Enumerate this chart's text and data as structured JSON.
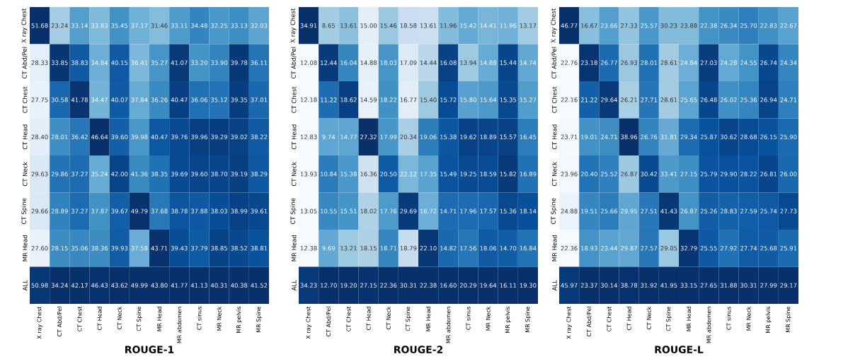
{
  "chart_data": [
    {
      "type": "heatmap",
      "title": "ROUGE-1",
      "categories": [
        "X ray Chest",
        "CT Abd/Pel",
        "CT Chest",
        "CT Head",
        "CT Neck",
        "CT Spine",
        "MR Head",
        "MR abdomen",
        "CT sinus",
        "MR Neck",
        "MR pelvis",
        "MR Spine"
      ],
      "y_categories": [
        "X ray Chest",
        "CT Abd/Pel",
        "CT Chest",
        "CT Head",
        "CT Neck",
        "CT Spine",
        "MR Head",
        "ALL"
      ],
      "cells": [
        [
          51.68,
          23.24,
          33.14,
          33.83,
          35.45,
          37.17,
          31.46,
          33.11,
          34.48,
          32.25,
          33.13,
          32.03
        ],
        [
          28.33,
          33.85,
          38.83,
          34.84,
          40.15,
          36.41,
          35.27,
          41.07,
          33.2,
          33.9,
          39.78,
          36.11
        ],
        [
          27.75,
          30.58,
          41.78,
          34.47,
          40.07,
          37.84,
          36.26,
          40.47,
          36.06,
          35.12,
          39.35,
          37.01
        ],
        [
          28.4,
          28.01,
          36.42,
          46.64,
          39.6,
          39.98,
          40.47,
          39.76,
          39.96,
          39.29,
          39.02,
          38.22
        ],
        [
          29.63,
          29.86,
          37.27,
          35.24,
          42.0,
          41.36,
          38.35,
          39.69,
          39.6,
          38.7,
          39.19,
          38.29
        ],
        [
          29.66,
          28.89,
          37.27,
          37.87,
          39.67,
          49.79,
          37.68,
          38.78,
          37.88,
          38.03,
          38.99,
          39.61
        ],
        [
          27.6,
          28.15,
          35.06,
          38.36,
          39.93,
          37.58,
          43.71,
          39.43,
          37.79,
          38.85,
          38.52,
          38.81
        ],
        [
          50.98,
          34.24,
          42.17,
          46.43,
          43.62,
          49.99,
          43.8,
          41.77,
          41.13,
          40.31,
          40.38,
          41.52
        ]
      ],
      "cell_labels": [
        [
          "51.68",
          "23.24",
          "33.14",
          "33.83",
          "35.45",
          "37.17",
          "31.46",
          "33.11",
          "34.48",
          "32.25",
          "33.13",
          "32.03"
        ],
        [
          "28.33",
          "33.85",
          "38.83",
          "34.84",
          "40.15",
          "36.41",
          "35.27",
          "41.07",
          "33.20",
          "33.90",
          "39.78",
          "36.11"
        ],
        [
          "27.75",
          "30.58",
          "41.78",
          "34.47",
          "40.07",
          "37.84",
          "36.26",
          "40.47",
          "36.06",
          "35.12",
          "39.35",
          "37.01"
        ],
        [
          "28.40",
          "28.01",
          "36.42",
          "46.64",
          "39.60",
          "39.98",
          "40.47",
          "39.76",
          "39.96",
          "39.29",
          "39.02",
          "38.22"
        ],
        [
          "29.63",
          "29.86",
          "37.27",
          "35.24",
          "42.00",
          "41.36",
          "38.35",
          "39.69",
          "39.60",
          "38.70",
          "39.19",
          "38.29"
        ],
        [
          "29.66",
          "28.89",
          "37.27",
          "37.87",
          "39.67",
          "49.79",
          "37.68",
          "38.78",
          "37.88",
          "38.03",
          "38.99",
          "39.61"
        ],
        [
          "27.60",
          "28.15",
          "35.06",
          "38.36",
          "39.93",
          "37.58",
          "43.71",
          "39.43",
          "37.79",
          "38.85",
          "38.52",
          "38.81"
        ],
        [
          "50.98",
          "34.24",
          "42.17",
          "46.43",
          "43.62",
          "49.99",
          "43.80",
          "41.77",
          "41.13",
          "40.31",
          "40.38",
          "41.52"
        ]
      ]
    },
    {
      "type": "heatmap",
      "title": "ROUGE-2",
      "categories": [
        "X ray Chest",
        "CT Abd/Pel",
        "CT Chest",
        "CT Head",
        "CT Neck",
        "CT Spine",
        "MR Head",
        "MR abdomen",
        "CT sinus",
        "MR Neck",
        "MR pelvis",
        "MR Spine"
      ],
      "y_categories": [
        "X ray Chest",
        "CT Abd/Pel",
        "CT Chest",
        "CT Head",
        "CT Neck",
        "CT Spine",
        "MR Head",
        "ALL"
      ],
      "cells": [
        [
          34.91,
          8.65,
          13.61,
          15.0,
          15.46,
          18.58,
          13.61,
          11.96,
          15.42,
          14.41,
          11.96,
          13.17
        ],
        [
          12.08,
          12.44,
          16.04,
          14.88,
          18.03,
          17.09,
          14.44,
          16.08,
          13.94,
          14.88,
          15.44,
          14.74
        ],
        [
          12.18,
          11.22,
          18.62,
          14.59,
          18.22,
          16.77,
          15.4,
          15.72,
          15.8,
          15.64,
          15.35,
          15.27
        ],
        [
          12.83,
          9.74,
          14.77,
          27.32,
          17.99,
          20.34,
          19.06,
          15.38,
          19.62,
          18.89,
          15.57,
          16.45
        ],
        [
          13.93,
          10.84,
          15.38,
          16.36,
          20.5,
          22.12,
          17.35,
          15.49,
          19.25,
          18.59,
          15.82,
          16.89
        ],
        [
          13.05,
          10.55,
          15.51,
          18.02,
          17.76,
          29.69,
          16.72,
          14.71,
          17.96,
          17.57,
          15.36,
          18.14
        ],
        [
          12.38,
          9.69,
          13.21,
          18.15,
          18.71,
          18.79,
          22.1,
          14.82,
          17.56,
          18.06,
          14.7,
          16.84
        ],
        [
          34.23,
          12.7,
          19.2,
          27.15,
          22.36,
          30.31,
          22.38,
          16.6,
          20.29,
          19.64,
          16.11,
          19.3
        ]
      ],
      "cell_labels": [
        [
          "34.91",
          "8.65",
          "13.61",
          "15.00",
          "15.46",
          "18.58",
          "13.61",
          "11.96",
          "15.42",
          "14.41",
          "11.96",
          "13.17"
        ],
        [
          "12.08",
          "12.44",
          "16.04",
          "14.88",
          "18.03",
          "17.09",
          "14.44",
          "16.08",
          "13.94",
          "14.88",
          "15.44",
          "14.74"
        ],
        [
          "12.18",
          "11.22",
          "18.62",
          "14.59",
          "18.22",
          "16.77",
          "15.40",
          "15.72",
          "15.80",
          "15.64",
          "15.35",
          "15.27"
        ],
        [
          "12.83",
          "9.74",
          "14.77",
          "27.32",
          "17.99",
          "20.34",
          "19.06",
          "15.38",
          "19.62",
          "18.89",
          "15.57",
          "16.45"
        ],
        [
          "13.93",
          "10.84",
          "15.38",
          "16.36",
          "20.50",
          "22.12",
          "17.35",
          "15.49",
          "19.25",
          "18.59",
          "15.82",
          "16.89"
        ],
        [
          "13.05",
          "10.55",
          "15.51",
          "18.02",
          "17.76",
          "29.69",
          "16.72",
          "14.71",
          "17.96",
          "17.57",
          "15.36",
          "18.14"
        ],
        [
          "12.38",
          "9.69",
          "13.21",
          "18.15",
          "18.71",
          "18.79",
          "22.10",
          "14.82",
          "17.56",
          "18.06",
          "14.70",
          "16.84"
        ],
        [
          "34.23",
          "12.70",
          "19.20",
          "27.15",
          "22.36",
          "30.31",
          "22.38",
          "16.60",
          "20.29",
          "19.64",
          "16.11",
          "19.30"
        ]
      ]
    },
    {
      "type": "heatmap",
      "title": "ROUGE-L",
      "categories": [
        "X ray Chest",
        "CT Abd/Pel",
        "CT Chest",
        "CT Head",
        "CT Neck",
        "CT Spine",
        "MR Head",
        "MR abdomen",
        "CT sinus",
        "MR Neck",
        "MR pelvis",
        "MR Spine"
      ],
      "y_categories": [
        "X ray Chest",
        "CT Abd/Pel",
        "CT Chest",
        "CT Head",
        "CT Neck",
        "CT Spine",
        "MR Head",
        "ALL"
      ],
      "cells": [
        [
          46.77,
          16.67,
          23.66,
          27.33,
          25.57,
          30.23,
          23.88,
          22.38,
          26.34,
          25.7,
          22.83,
          22.67
        ],
        [
          22.76,
          23.18,
          26.77,
          26.93,
          28.01,
          28.61,
          24.84,
          27.03,
          24.28,
          24.55,
          26.74,
          24.34
        ],
        [
          22.16,
          21.22,
          29.64,
          26.21,
          27.71,
          28.61,
          25.65,
          26.48,
          26.02,
          25.36,
          26.94,
          24.71
        ],
        [
          23.71,
          19.01,
          24.71,
          38.96,
          26.76,
          31.81,
          29.34,
          25.87,
          30.62,
          28.68,
          26.15,
          25.9
        ],
        [
          23.96,
          20.4,
          25.52,
          26.87,
          30.42,
          33.41,
          27.15,
          25.79,
          29.9,
          28.22,
          26.81,
          26.0
        ],
        [
          24.88,
          19.51,
          25.66,
          29.95,
          27.51,
          41.43,
          26.87,
          25.26,
          28.83,
          27.59,
          25.74,
          27.73
        ],
        [
          22.36,
          18.93,
          23.44,
          29.87,
          27.57,
          29.05,
          32.79,
          25.55,
          27.92,
          27.74,
          25.68,
          25.91
        ],
        [
          45.97,
          23.37,
          30.14,
          38.78,
          31.92,
          41.95,
          33.15,
          27.65,
          31.88,
          30.31,
          27.99,
          29.17
        ]
      ],
      "cell_labels": [
        [
          "46.77",
          "16.67",
          "23.66",
          "27.33",
          "25.57",
          "30.23",
          "23.88",
          "22.38",
          "26.34",
          "25.70",
          "22.83",
          "22.67"
        ],
        [
          "22.76",
          "23.18",
          "26.77",
          "26.93",
          "28.01",
          "28.61",
          "24.84",
          "27.03",
          "24.28",
          "24.55",
          "26.74",
          "24.34"
        ],
        [
          "22.16",
          "21.22",
          "29.64",
          "26.21",
          "27.71",
          "28.61",
          "25.65",
          "26.48",
          "26.02",
          "25.36",
          "26.94",
          "24.71"
        ],
        [
          "23.71",
          "19.01",
          "24.71",
          "38.96",
          "26.76",
          "31.81",
          "29.34",
          "25.87",
          "30.62",
          "28.68",
          "26.15",
          "25.90"
        ],
        [
          "23.96",
          "20.40",
          "25.52",
          "26.87",
          "30.42",
          "33.41",
          "27.15",
          "25.79",
          "29.90",
          "28.22",
          "26.81",
          "26.00"
        ],
        [
          "24.88",
          "19.51",
          "25.66",
          "29.95",
          "27.51",
          "41.43",
          "26.87",
          "25.26",
          "28.83",
          "27.59",
          "25.74",
          "27.73"
        ],
        [
          "22.36",
          "18.93",
          "23.44",
          "29.87",
          "27.57",
          "29.05",
          "32.79",
          "25.55",
          "27.92",
          "27.74",
          "25.68",
          "25.91"
        ],
        [
          "45.97",
          "23.37",
          "30.14",
          "38.78",
          "31.92",
          "41.95",
          "33.15",
          "27.65",
          "31.88",
          "30.31",
          "27.99",
          "29.17"
        ]
      ]
    }
  ]
}
